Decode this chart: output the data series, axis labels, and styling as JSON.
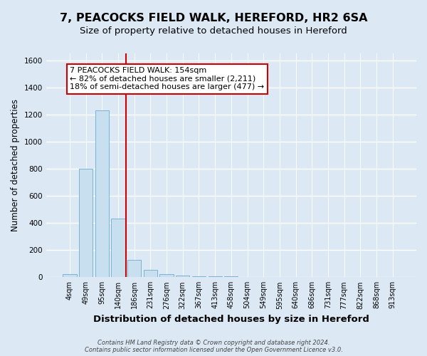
{
  "title": "7, PEACOCKS FIELD WALK, HEREFORD, HR2 6SA",
  "subtitle": "Size of property relative to detached houses in Hereford",
  "xlabel": "Distribution of detached houses by size in Hereford",
  "ylabel": "Number of detached properties",
  "bins": [
    "4sqm",
    "49sqm",
    "95sqm",
    "140sqm",
    "186sqm",
    "231sqm",
    "276sqm",
    "322sqm",
    "367sqm",
    "413sqm",
    "458sqm",
    "504sqm",
    "549sqm",
    "595sqm",
    "640sqm",
    "686sqm",
    "731sqm",
    "777sqm",
    "822sqm",
    "868sqm",
    "913sqm"
  ],
  "values": [
    25,
    800,
    1230,
    430,
    130,
    55,
    20,
    12,
    5,
    5,
    5,
    0,
    0,
    0,
    0,
    0,
    0,
    0,
    0,
    0,
    0
  ],
  "bar_color": "#c8dff0",
  "bar_edge_color": "#7ab3d4",
  "vline_x": 3.5,
  "vline_color": "#cc0000",
  "ylim": [
    0,
    1650
  ],
  "yticks": [
    0,
    200,
    400,
    600,
    800,
    1000,
    1200,
    1400,
    1600
  ],
  "annotation_text": "7 PEACOCKS FIELD WALK: 154sqm\n← 82% of detached houses are smaller (2,211)\n18% of semi-detached houses are larger (477) →",
  "annotation_box_color": "#ffffff",
  "annotation_box_edge": "#cc0000",
  "footer1": "Contains HM Land Registry data © Crown copyright and database right 2024.",
  "footer2": "Contains public sector information licensed under the Open Government Licence v3.0.",
  "background_color": "#dce9f5",
  "plot_bg_color": "#dce9f5",
  "grid_color": "#ffffff",
  "title_fontsize": 11.5,
  "subtitle_fontsize": 9.5,
  "tick_fontsize": 7,
  "ylabel_fontsize": 8.5,
  "xlabel_fontsize": 9.5,
  "annotation_fontsize": 8,
  "footer_fontsize": 6
}
